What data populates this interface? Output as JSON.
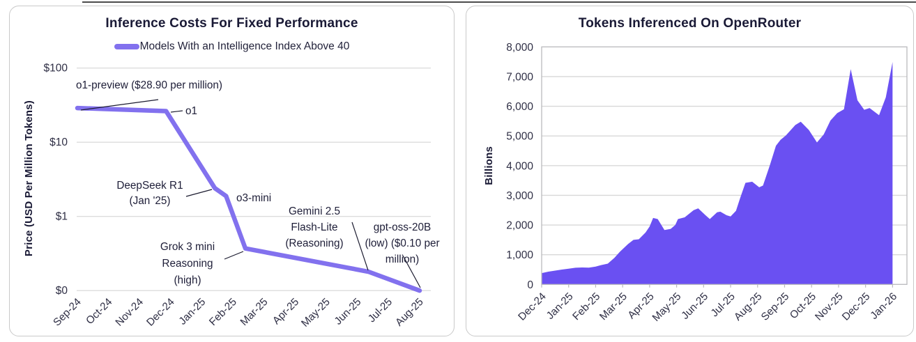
{
  "chart_data": [
    {
      "type": "line",
      "title": "Inference Costs For Fixed Performance",
      "ylabel": "Price (USD Per Million Tokens)",
      "y_scale": "log",
      "legend": [
        {
          "name": "Models With an Intelligence Index Above 40",
          "color": "#8271ee"
        }
      ],
      "x_ticks": [
        "Sep-24",
        "Oct-24",
        "Nov-24",
        "Dec-24",
        "Jan-25",
        "Feb-25",
        "Mar-25",
        "Apr-25",
        "May-25",
        "Jun-25",
        "Jul-25",
        "Aug-25"
      ],
      "y_ticks": [
        {
          "label": "$100",
          "value": 100
        },
        {
          "label": "$10",
          "value": 10
        },
        {
          "label": "$1",
          "value": 1
        },
        {
          "label": "$0",
          "value": 0.1
        }
      ],
      "series": [
        {
          "name": "Models With an Intelligence Index Above 40",
          "color": "#8271ee",
          "points": [
            [
              0,
              28.9
            ],
            [
              2.85,
              26.3
            ],
            [
              4.42,
              2.4
            ],
            [
              4.78,
              1.88
            ],
            [
              5.4,
              0.37
            ],
            [
              9.35,
              0.18
            ],
            [
              11,
              0.1
            ]
          ]
        }
      ],
      "annotations": [
        {
          "lines": [
            "o1-preview ($28.90 per million)"
          ],
          "point": {
            "month": 0,
            "value": 28.9
          }
        },
        {
          "lines": [
            "o1"
          ],
          "point": {
            "month": 2.85,
            "value": 26.3
          }
        },
        {
          "lines": [
            "DeepSeek R1",
            "(Jan '25)"
          ],
          "point": {
            "month": 4.42,
            "value": 2.4
          }
        },
        {
          "lines": [
            "o3-mini"
          ],
          "point": {
            "month": 4.78,
            "value": 1.88
          }
        },
        {
          "lines": [
            "Grok 3 mini",
            "Reasoning",
            "(high)"
          ],
          "point": {
            "month": 5.4,
            "value": 0.37
          }
        },
        {
          "lines": [
            "Gemini 2.5",
            "Flash-Lite",
            "(Reasoning)"
          ],
          "point": {
            "month": 9.35,
            "value": 0.18
          }
        },
        {
          "lines": [
            "gpt-oss-20B",
            "(low) ($0.10 per",
            "million)"
          ],
          "point": {
            "month": 11,
            "value": 0.1
          }
        }
      ]
    },
    {
      "type": "area",
      "title": "Tokens Inferenced On OpenRouter",
      "ylabel": "Billions",
      "area_color": "#6a50f2",
      "ylim": [
        0,
        8000
      ],
      "x_ticks": [
        "Dec-24",
        "Jan-25",
        "Feb-25",
        "Mar-25",
        "Apr-25",
        "May-25",
        "Jun-25",
        "Jul-25",
        "Aug-25",
        "Sep-25",
        "Oct-25",
        "Nov-25",
        "Dec-25",
        "Jan-26"
      ],
      "y_ticks": [
        {
          "label": "8,000",
          "value": 8000
        },
        {
          "label": "7,000",
          "value": 7000
        },
        {
          "label": "6,000",
          "value": 6000
        },
        {
          "label": "5,000",
          "value": 5000
        },
        {
          "label": "4,000",
          "value": 4000
        },
        {
          "label": "3,000",
          "value": 3000
        },
        {
          "label": "2,000",
          "value": 2000
        },
        {
          "label": "1,000",
          "value": 1000
        },
        {
          "label": "0",
          "value": 0
        }
      ],
      "points": [
        [
          0,
          380
        ],
        [
          0.25,
          430
        ],
        [
          0.5,
          465
        ],
        [
          0.75,
          500
        ],
        [
          1,
          530
        ],
        [
          1.25,
          560
        ],
        [
          1.5,
          570
        ],
        [
          1.75,
          565
        ],
        [
          2,
          600
        ],
        [
          2.2,
          650
        ],
        [
          2.45,
          700
        ],
        [
          2.7,
          900
        ],
        [
          2.9,
          1100
        ],
        [
          3.2,
          1360
        ],
        [
          3.4,
          1500
        ],
        [
          3.6,
          1520
        ],
        [
          3.85,
          1750
        ],
        [
          4,
          1950
        ],
        [
          4.13,
          2240
        ],
        [
          4.3,
          2200
        ],
        [
          4.55,
          1830
        ],
        [
          4.78,
          1870
        ],
        [
          4.95,
          2000
        ],
        [
          5.05,
          2200
        ],
        [
          5.3,
          2260
        ],
        [
          5.63,
          2500
        ],
        [
          5.8,
          2560
        ],
        [
          6.07,
          2330
        ],
        [
          6.23,
          2200
        ],
        [
          6.5,
          2430
        ],
        [
          6.62,
          2450
        ],
        [
          6.85,
          2330
        ],
        [
          7,
          2290
        ],
        [
          7.2,
          2480
        ],
        [
          7.35,
          2900
        ],
        [
          7.55,
          3420
        ],
        [
          7.8,
          3460
        ],
        [
          8.06,
          3270
        ],
        [
          8.2,
          3330
        ],
        [
          8.45,
          4000
        ],
        [
          8.68,
          4670
        ],
        [
          8.85,
          4870
        ],
        [
          9.05,
          5020
        ],
        [
          9.4,
          5370
        ],
        [
          9.6,
          5480
        ],
        [
          9.9,
          5200
        ],
        [
          10.2,
          4780
        ],
        [
          10.45,
          5050
        ],
        [
          10.7,
          5520
        ],
        [
          10.95,
          5770
        ],
        [
          11.2,
          5900
        ],
        [
          11.45,
          7250
        ],
        [
          11.7,
          6200
        ],
        [
          11.95,
          5880
        ],
        [
          12.15,
          5940
        ],
        [
          12.5,
          5700
        ],
        [
          12.75,
          6300
        ],
        [
          13,
          7490
        ]
      ]
    }
  ]
}
